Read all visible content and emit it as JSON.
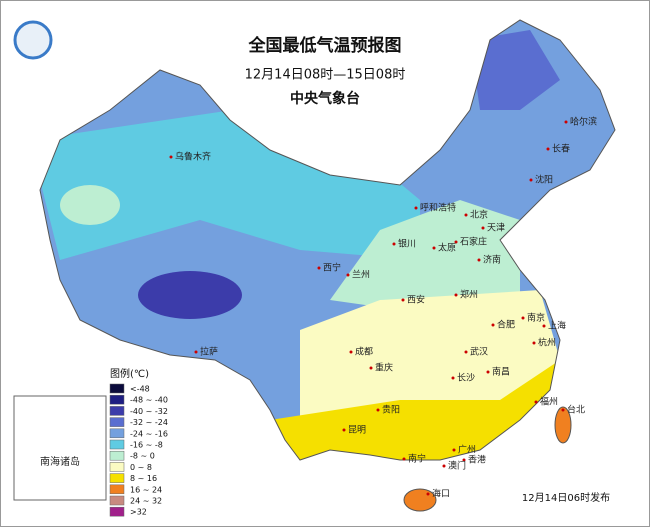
{
  "header": {
    "title": "全国最低气温预报图",
    "subtitle": "12月14日08时—15日08时",
    "agency": "中央气象台"
  },
  "legend": {
    "title": "图例(℃)",
    "items": [
      {
        "label": "<-48",
        "color": "#0b0b3c"
      },
      {
        "label": "-48 ~ -40",
        "color": "#1e1e82"
      },
      {
        "label": "-40 ~ -32",
        "color": "#3c3caa"
      },
      {
        "label": "-32 ~ -24",
        "color": "#5a6ed0"
      },
      {
        "label": "-24 ~ -16",
        "color": "#74a0de"
      },
      {
        "label": "-16 ~ -8",
        "color": "#5fcbe2"
      },
      {
        "label": "-8 ~ 0",
        "color": "#bdeed2"
      },
      {
        "label": "0 ~ 8",
        "color": "#fbfbc2"
      },
      {
        "label": "8 ~ 16",
        "color": "#f5e000"
      },
      {
        "label": "16 ~ 24",
        "color": "#f08020"
      },
      {
        "label": "24 ~ 32",
        "color": "#c88a80"
      },
      {
        "label": ">32",
        "color": "#a0208a"
      }
    ]
  },
  "cities": [
    "乌鲁木齐",
    "哈尔滨",
    "长春",
    "沈阳",
    "呼和浩特",
    "北京",
    "天津",
    "石家庄",
    "太原",
    "济南",
    "银川",
    "西宁",
    "兰州",
    "西安",
    "郑州",
    "合肥",
    "南京",
    "上海",
    "杭州",
    "武汉",
    "成都",
    "重庆",
    "长沙",
    "南昌",
    "福州",
    "台北",
    "贵阳",
    "昆明",
    "南宁",
    "广州",
    "香港",
    "澳门",
    "海口",
    "拉萨"
  ],
  "inset_label": "南海诸岛",
  "footer": "12月14日06时发布"
}
